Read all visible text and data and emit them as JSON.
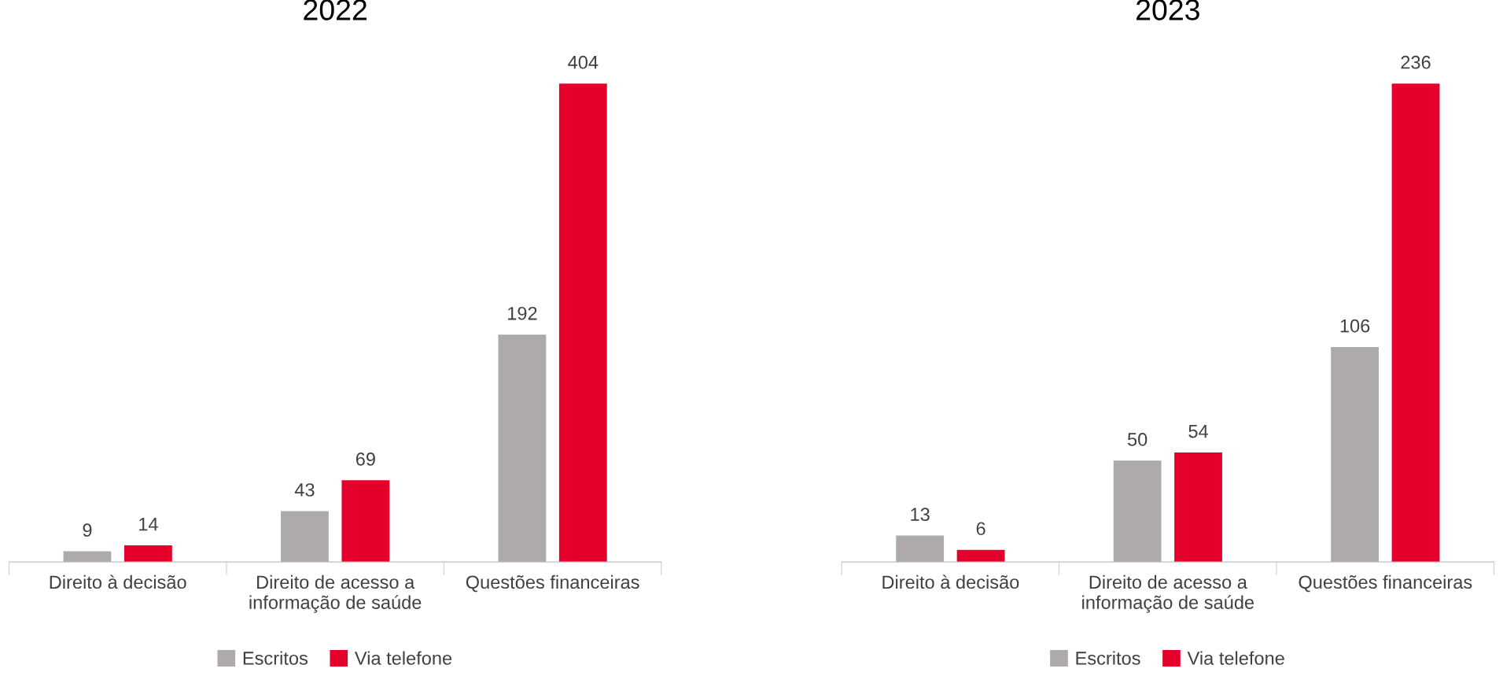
{
  "chart_data": [
    {
      "type": "bar",
      "title": "2022",
      "categories": [
        "Direito à decisão",
        "Direito de acesso a\ninformação de saúde",
        "Questões financeiras"
      ],
      "data_labels": true,
      "legend": "bottom",
      "series": [
        {
          "name": "Escritos",
          "color": "#aeaaaa",
          "values": [
            9,
            43,
            192
          ]
        },
        {
          "name": "Via telefone",
          "color": "#e4002b",
          "values": [
            14,
            69,
            404
          ]
        }
      ]
    },
    {
      "type": "bar",
      "title": "2023",
      "categories": [
        "Direito à decisão",
        "Direito de acesso a\ninformação de saúde",
        "Questões financeiras"
      ],
      "data_labels": true,
      "legend": "bottom",
      "series": [
        {
          "name": "Escritos",
          "color": "#aeaaaa",
          "values": [
            13,
            50,
            106
          ]
        },
        {
          "name": "Via telefone",
          "color": "#e4002b",
          "values": [
            6,
            54,
            236
          ]
        }
      ]
    }
  ]
}
